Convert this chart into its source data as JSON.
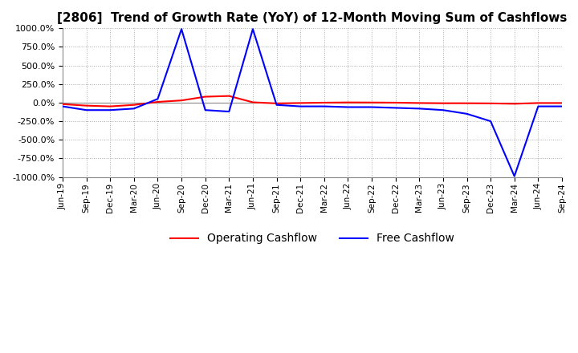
{
  "title": "[2806]  Trend of Growth Rate (YoY) of 12-Month Moving Sum of Cashflows",
  "title_fontsize": 11,
  "ylim": [
    -1000,
    1000
  ],
  "yticks": [
    1000.0,
    750.0,
    500.0,
    250.0,
    0.0,
    -250.0,
    -500.0,
    -750.0,
    -1000.0
  ],
  "background_color": "#ffffff",
  "grid_color": "#aaaaaa",
  "operating_color": "#ff0000",
  "free_color": "#0000ff",
  "x_labels": [
    "Jun-19",
    "Sep-19",
    "Dec-19",
    "Mar-20",
    "Jun-20",
    "Sep-20",
    "Dec-20",
    "Mar-21",
    "Jun-21",
    "Sep-21",
    "Dec-21",
    "Mar-22",
    "Jun-22",
    "Sep-22",
    "Dec-22",
    "Mar-23",
    "Jun-23",
    "Sep-23",
    "Dec-23",
    "Mar-24",
    "Jun-24",
    "Sep-24"
  ],
  "operating_cashflow": [
    -20,
    -40,
    -50,
    -30,
    10,
    30,
    80,
    90,
    5,
    -10,
    -5,
    0,
    3,
    2,
    0,
    -5,
    -8,
    -8,
    -10,
    -15,
    -5,
    -5
  ],
  "free_cashflow": [
    -50,
    -100,
    -100,
    -80,
    50,
    990,
    -100,
    -120,
    990,
    -30,
    -50,
    -50,
    -60,
    -60,
    -70,
    -80,
    -100,
    -150,
    -250,
    -990,
    -50,
    -50
  ],
  "legend_labels": [
    "Operating Cashflow",
    "Free Cashflow"
  ],
  "line_width": 1.5
}
